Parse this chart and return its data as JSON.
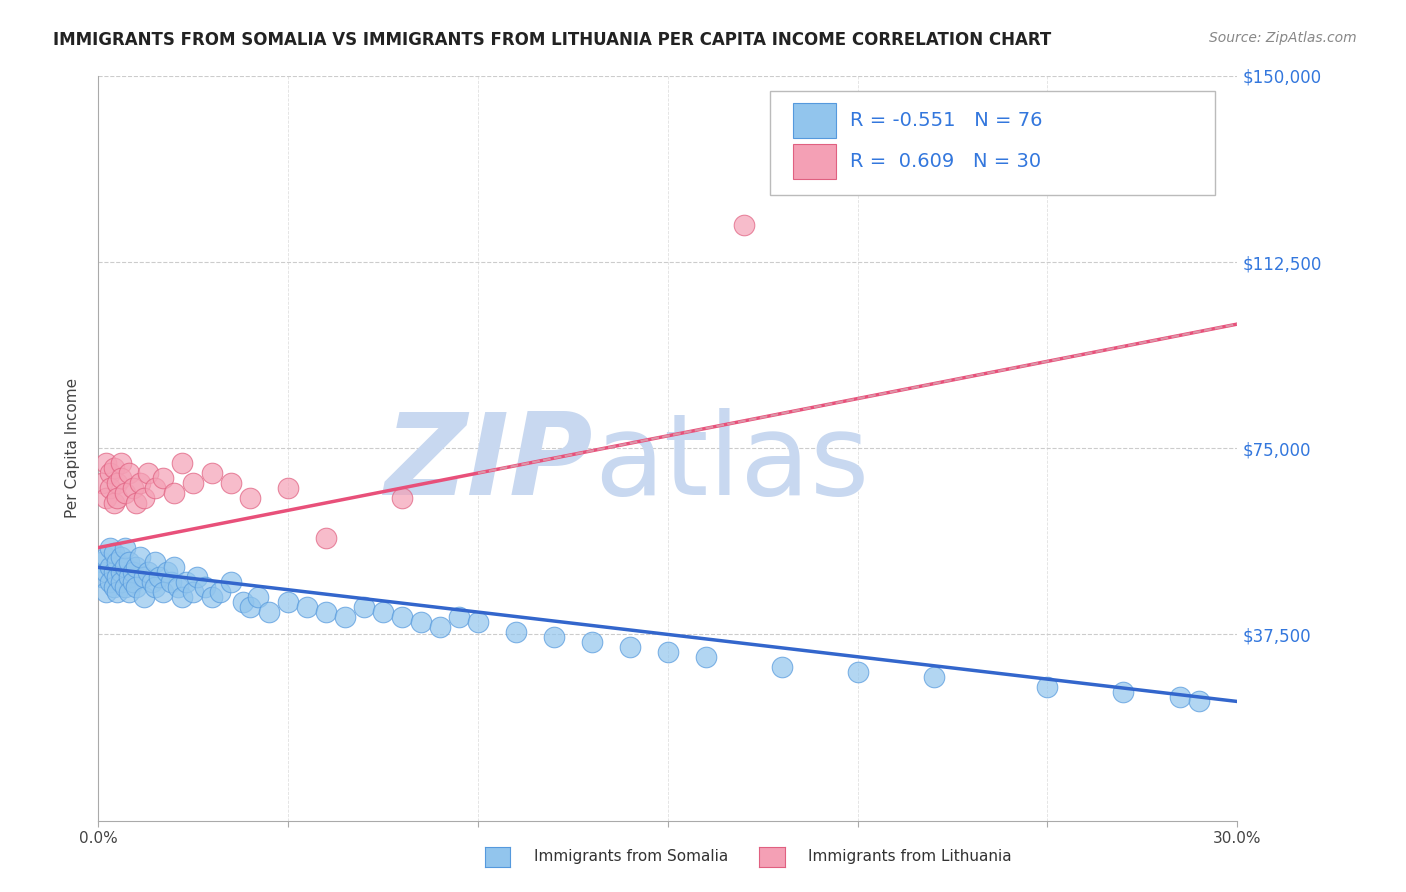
{
  "title": "IMMIGRANTS FROM SOMALIA VS IMMIGRANTS FROM LITHUANIA PER CAPITA INCOME CORRELATION CHART",
  "source": "Source: ZipAtlas.com",
  "ylabel": "Per Capita Income",
  "xlim": [
    0.0,
    0.3
  ],
  "ylim": [
    0,
    150000
  ],
  "yticks": [
    37500,
    75000,
    112500,
    150000
  ],
  "ytick_labels": [
    "$37,500",
    "$75,000",
    "$112,500",
    "$150,000"
  ],
  "xtick_positions": [
    0.0,
    0.05,
    0.1,
    0.15,
    0.2,
    0.25,
    0.3
  ],
  "xtick_labels": [
    "0.0%",
    "",
    "",
    "",
    "",
    "",
    "30.0%"
  ],
  "somalia_color": "#92C5ED",
  "somalia_edge": "#5599DD",
  "lithuania_color": "#F4A0B5",
  "lithuania_edge": "#E06080",
  "somalia_R": -0.551,
  "somalia_N": 76,
  "lithuania_R": 0.609,
  "lithuania_N": 30,
  "somalia_line_color": "#3366CC",
  "lithuania_line_color": "#E8507A",
  "lithuania_dash_color": "#DDA0B0",
  "tick_color": "#3377DD",
  "grid_color": "#CCCCCC",
  "watermark_zip": "ZIP",
  "watermark_atlas": "atlas",
  "watermark_color": "#C8D8F0",
  "background": "#FFFFFF",
  "somalia_x": [
    0.001,
    0.001,
    0.002,
    0.002,
    0.002,
    0.003,
    0.003,
    0.003,
    0.004,
    0.004,
    0.004,
    0.005,
    0.005,
    0.005,
    0.006,
    0.006,
    0.006,
    0.007,
    0.007,
    0.007,
    0.008,
    0.008,
    0.008,
    0.009,
    0.009,
    0.01,
    0.01,
    0.011,
    0.012,
    0.012,
    0.013,
    0.014,
    0.015,
    0.015,
    0.016,
    0.017,
    0.018,
    0.019,
    0.02,
    0.021,
    0.022,
    0.023,
    0.025,
    0.026,
    0.028,
    0.03,
    0.032,
    0.035,
    0.038,
    0.04,
    0.042,
    0.045,
    0.05,
    0.055,
    0.06,
    0.065,
    0.07,
    0.075,
    0.08,
    0.085,
    0.09,
    0.095,
    0.1,
    0.11,
    0.12,
    0.13,
    0.14,
    0.15,
    0.16,
    0.18,
    0.2,
    0.22,
    0.25,
    0.27,
    0.285,
    0.29
  ],
  "somalia_y": [
    52000,
    49000,
    50000,
    53000,
    46000,
    51000,
    48000,
    55000,
    50000,
    47000,
    54000,
    49000,
    52000,
    46000,
    50000,
    48000,
    53000,
    51000,
    47000,
    55000,
    49000,
    52000,
    46000,
    50000,
    48000,
    51000,
    47000,
    53000,
    49000,
    45000,
    50000,
    48000,
    52000,
    47000,
    49000,
    46000,
    50000,
    48000,
    51000,
    47000,
    45000,
    48000,
    46000,
    49000,
    47000,
    45000,
    46000,
    48000,
    44000,
    43000,
    45000,
    42000,
    44000,
    43000,
    42000,
    41000,
    43000,
    42000,
    41000,
    40000,
    39000,
    41000,
    40000,
    38000,
    37000,
    36000,
    35000,
    34000,
    33000,
    31000,
    30000,
    29000,
    27000,
    26000,
    25000,
    24000
  ],
  "lithuania_x": [
    0.001,
    0.002,
    0.002,
    0.003,
    0.003,
    0.004,
    0.004,
    0.005,
    0.005,
    0.006,
    0.006,
    0.007,
    0.008,
    0.009,
    0.01,
    0.011,
    0.012,
    0.013,
    0.015,
    0.017,
    0.02,
    0.022,
    0.025,
    0.03,
    0.035,
    0.04,
    0.05,
    0.06,
    0.08,
    0.17
  ],
  "lithuania_y": [
    68000,
    65000,
    72000,
    70000,
    67000,
    64000,
    71000,
    68000,
    65000,
    72000,
    69000,
    66000,
    70000,
    67000,
    64000,
    68000,
    65000,
    70000,
    67000,
    69000,
    66000,
    72000,
    68000,
    70000,
    68000,
    65000,
    67000,
    57000,
    65000,
    120000
  ],
  "somalia_trend_x0": 0.0,
  "somalia_trend_y0": 51000,
  "somalia_trend_x1": 0.3,
  "somalia_trend_y1": 24000,
  "lithuania_trend_x0": 0.0,
  "lithuania_trend_y0": 55000,
  "lithuania_trend_x1": 0.3,
  "lithuania_trend_y1": 100000
}
